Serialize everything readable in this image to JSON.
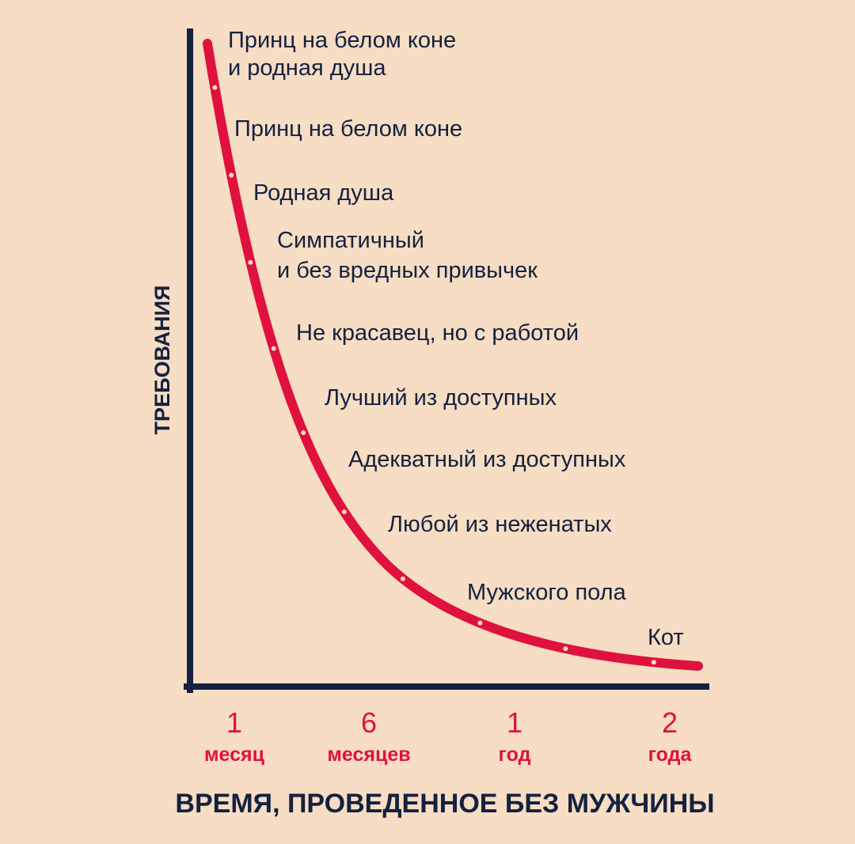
{
  "chart_data": {
    "type": "line",
    "xlabel": "ВРЕМЯ, ПРОВЕДЕННОЕ БЕЗ МУЖЧИНЫ",
    "ylabel": "ТРЕБОВАНИЯ",
    "x_ticks": [
      {
        "value": "1",
        "unit": "месяц"
      },
      {
        "value": "6",
        "unit": "месяцев"
      },
      {
        "value": "1",
        "unit": "год"
      },
      {
        "value": "2",
        "unit": "года"
      }
    ],
    "levels": [
      {
        "lines": [
          "Принц на белом коне",
          "и родная душа"
        ]
      },
      {
        "lines": [
          "Принц на белом коне"
        ]
      },
      {
        "lines": [
          "Родная душа"
        ]
      },
      {
        "lines": [
          "Симпатичный",
          "и без вредных привычек"
        ]
      },
      {
        "lines": [
          "Не красавец, но с работой"
        ]
      },
      {
        "lines": [
          "Лучший из доступных"
        ]
      },
      {
        "lines": [
          "Адекватный из доступных"
        ]
      },
      {
        "lines": [
          "Любой из неженатых"
        ]
      },
      {
        "lines": [
          "Мужского пола"
        ]
      },
      {
        "lines": [
          "Кот"
        ]
      }
    ],
    "grid": false,
    "colors": {
      "background": "#f6ddc3",
      "axis": "#14213f",
      "curve": "#e0113f",
      "tick_labels": "#e0113f",
      "text": "#14213f"
    }
  }
}
